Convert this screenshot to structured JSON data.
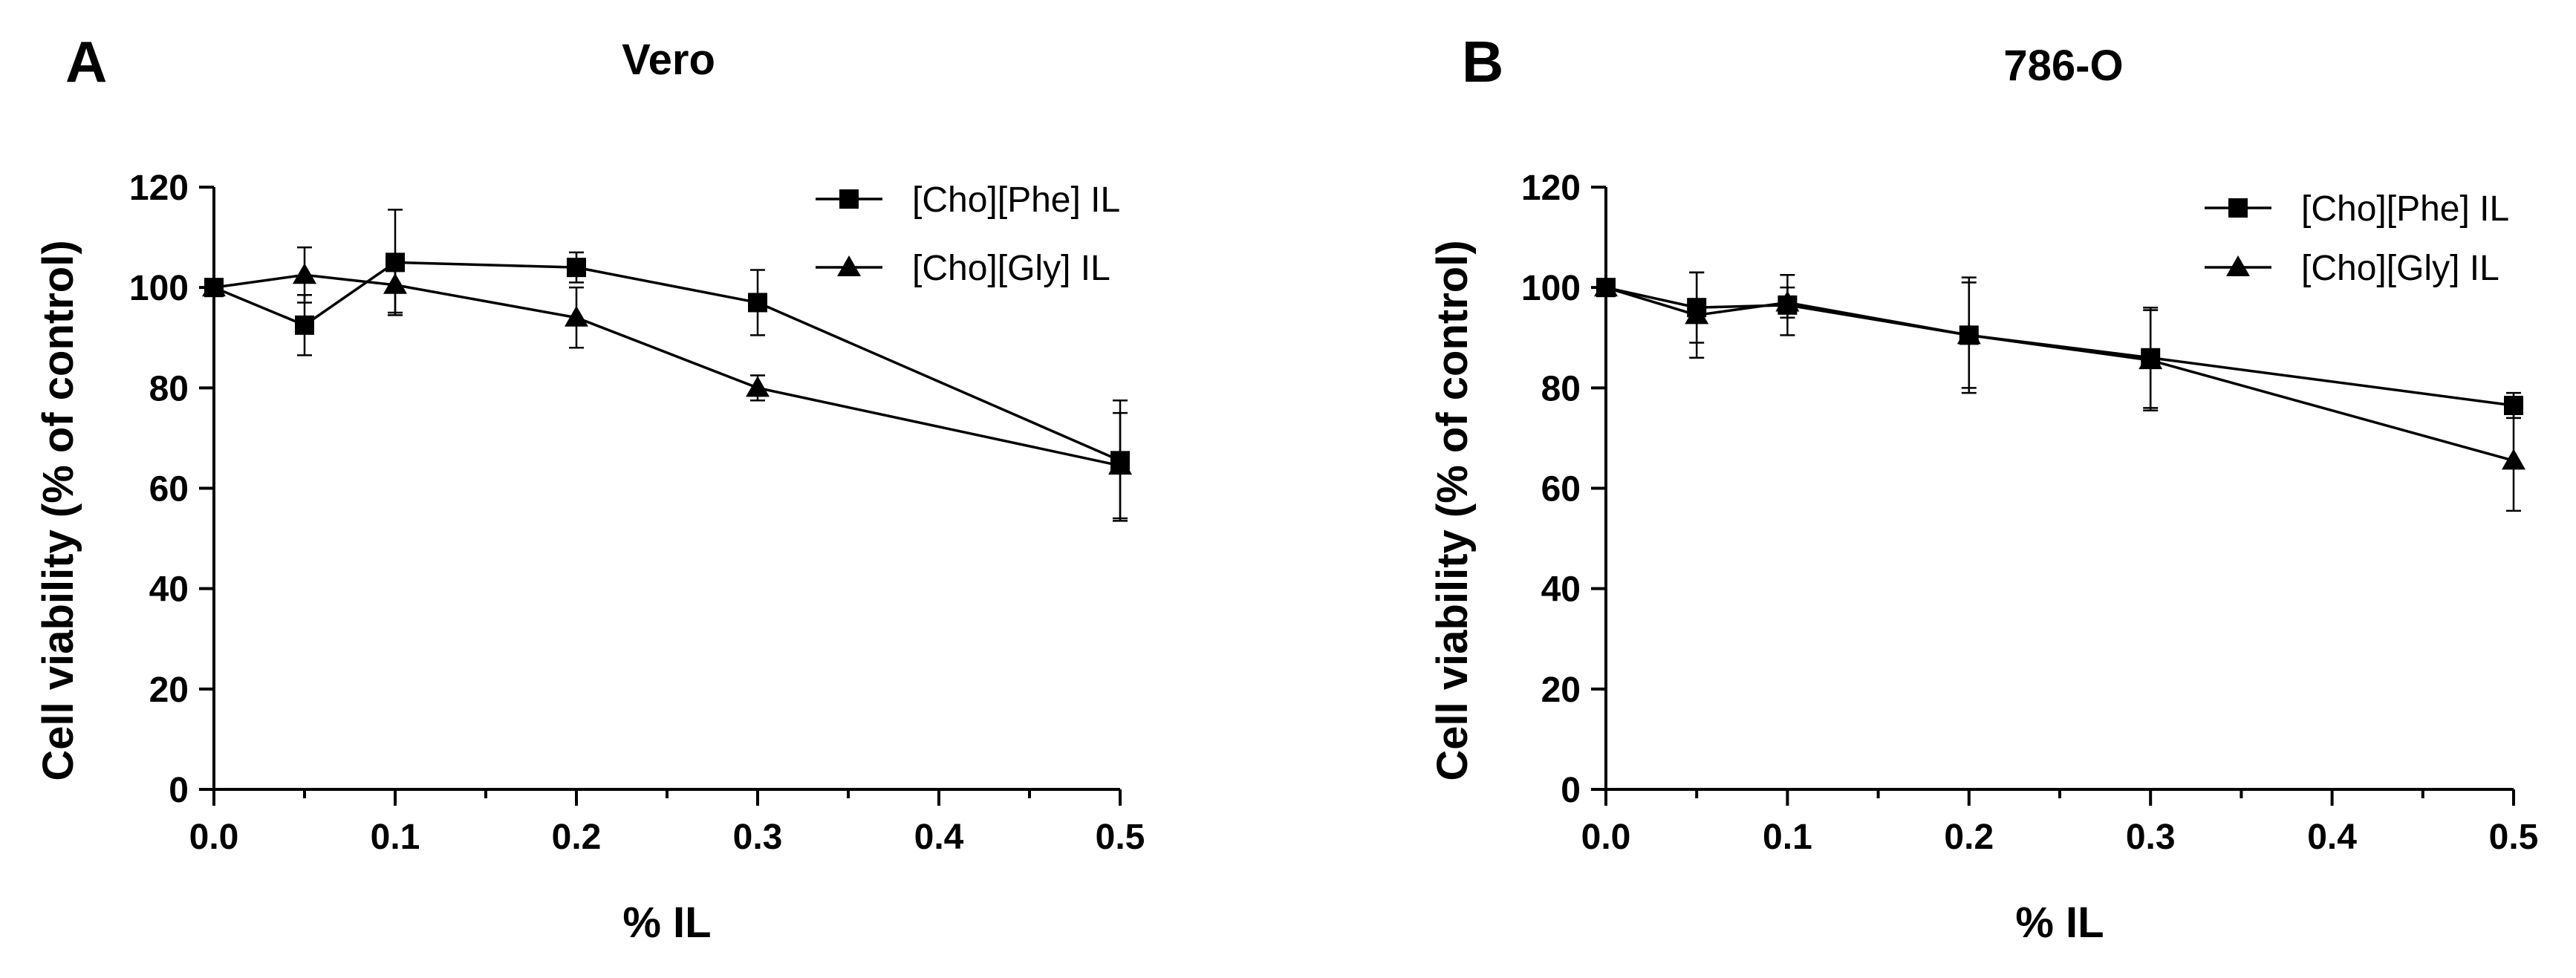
{
  "chart_data": [
    {
      "panel": "A",
      "type": "line",
      "title": "Vero",
      "xlabel": "% IL",
      "ylabel": "Cell viability (% of control)",
      "xlim": [
        0,
        0.5
      ],
      "ylim": [
        0,
        120
      ],
      "xticks": [
        "0.0",
        "0.1",
        "0.2",
        "0.3",
        "0.4",
        "0.5"
      ],
      "yticks": [
        "0",
        "20",
        "40",
        "60",
        "80",
        "100",
        "120"
      ],
      "legend_position": "top-right",
      "series": [
        {
          "name": "[Cho][Phe] IL",
          "marker": "square",
          "x": [
            0,
            0.05,
            0.1,
            0.2,
            0.3,
            0.5
          ],
          "y": [
            100,
            92.5,
            105,
            104,
            97,
            65.5
          ],
          "err": [
            0,
            6,
            10.5,
            3,
            6.5,
            12
          ]
        },
        {
          "name": "[Cho][Gly] IL",
          "marker": "triangle",
          "x": [
            0,
            0.05,
            0.1,
            0.2,
            0.3,
            0.5
          ],
          "y": [
            100,
            102.5,
            100.5,
            94,
            80,
            64.5
          ],
          "err": [
            0,
            5.5,
            5.5,
            6,
            2.5,
            10.5
          ]
        }
      ]
    },
    {
      "panel": "B",
      "type": "line",
      "title": "786-O",
      "xlabel": "% IL",
      "ylabel": "Cell viability (% of control)",
      "xlim": [
        0,
        0.5
      ],
      "ylim": [
        0,
        120
      ],
      "xticks": [
        "0.0",
        "0.1",
        "0.2",
        "0.3",
        "0.4",
        "0.5"
      ],
      "yticks": [
        "0",
        "20",
        "40",
        "60",
        "80",
        "100",
        "120"
      ],
      "legend_position": "top-right",
      "series": [
        {
          "name": "[Cho][Phe] IL",
          "marker": "square",
          "x": [
            0,
            0.05,
            0.1,
            0.2,
            0.3,
            0.5
          ],
          "y": [
            100,
            96,
            96.5,
            90.5,
            86,
            76.5
          ],
          "err": [
            0,
            7,
            6,
            11.5,
            10,
            2.5
          ]
        },
        {
          "name": "[Cho][Gly] IL",
          "marker": "triangle",
          "x": [
            0,
            0.05,
            0.1,
            0.2,
            0.3,
            0.5
          ],
          "y": [
            100,
            94.5,
            97,
            90.5,
            85.5,
            65.5
          ],
          "err": [
            0,
            8.5,
            3,
            10.5,
            10,
            10
          ]
        }
      ]
    }
  ]
}
